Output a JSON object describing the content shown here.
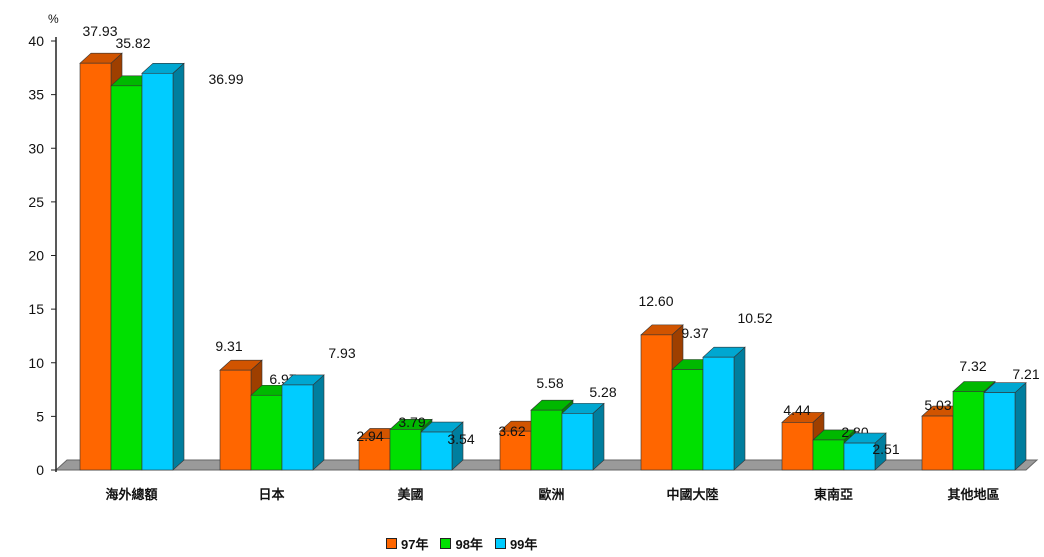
{
  "chart_data": {
    "type": "bar",
    "ylabel": "%",
    "ylim": [
      0,
      40
    ],
    "yticks": [
      "0",
      "5",
      "10",
      "15",
      "20",
      "25",
      "30",
      "35",
      "40"
    ],
    "categories": [
      "海外總額",
      "日本",
      "美國",
      "歐洲",
      "中國大陸",
      "東南亞",
      "其他地區"
    ],
    "series": [
      {
        "name": "97年",
        "color": "#FF6600",
        "values": [
          37.93,
          9.31,
          2.94,
          3.62,
          12.6,
          4.44,
          5.03
        ]
      },
      {
        "name": "98年",
        "color": "#00E000",
        "values": [
          35.82,
          6.97,
          3.79,
          5.58,
          9.37,
          2.8,
          7.32
        ]
      },
      {
        "name": "99年",
        "color": "#00CCFF",
        "values": [
          36.99,
          7.93,
          3.54,
          5.28,
          10.52,
          2.51,
          7.21
        ]
      }
    ],
    "data_labels": [
      [
        "37.93",
        "9.31",
        "2.94",
        "3.62",
        "12.60",
        "4.44",
        "5.03"
      ],
      [
        "35.82",
        "6.97",
        "3.79",
        "5.58",
        "9.37",
        "2.80",
        "7.32"
      ],
      [
        "36.99",
        "7.93",
        "3.54",
        "5.28",
        "10.52",
        "2.51",
        "7.21"
      ]
    ],
    "legend_position": "bottom",
    "grid": false
  }
}
